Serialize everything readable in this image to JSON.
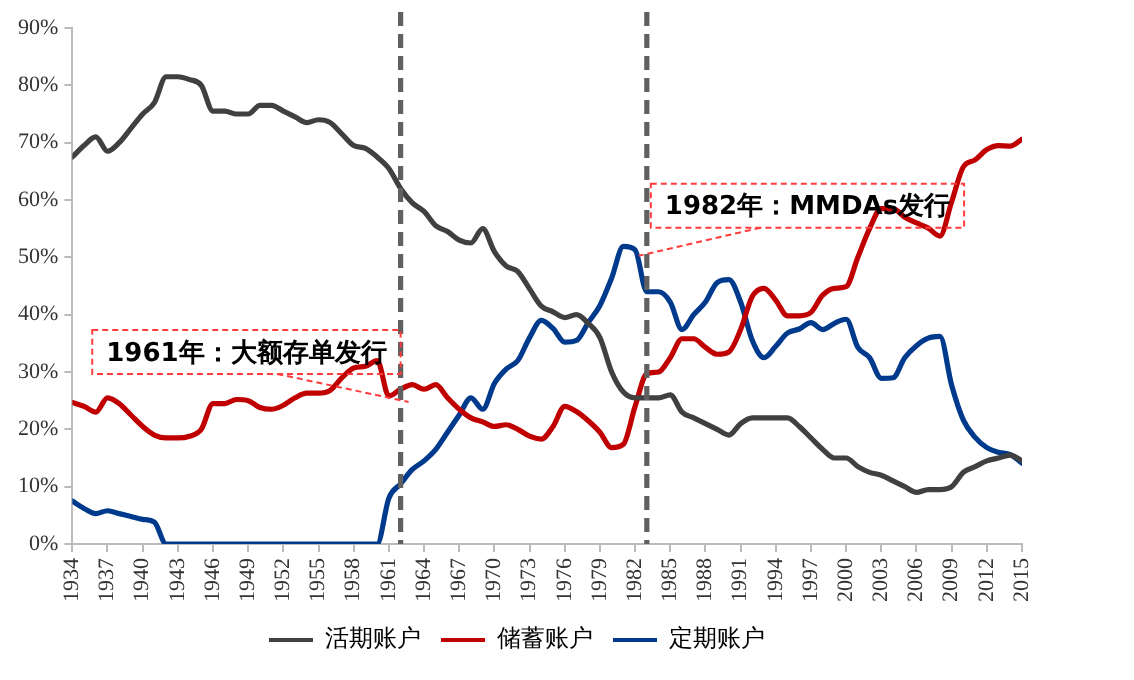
{
  "chart_data": {
    "type": "line",
    "x": [
      1934,
      1935,
      1936,
      1937,
      1938,
      1939,
      1940,
      1941,
      1942,
      1943,
      1944,
      1945,
      1946,
      1947,
      1948,
      1949,
      1950,
      1951,
      1952,
      1953,
      1954,
      1955,
      1956,
      1957,
      1958,
      1959,
      1960,
      1961,
      1962,
      1963,
      1964,
      1965,
      1966,
      1967,
      1968,
      1969,
      1970,
      1971,
      1972,
      1973,
      1974,
      1975,
      1976,
      1977,
      1978,
      1979,
      1980,
      1981,
      1982,
      1983,
      1984,
      1985,
      1986,
      1987,
      1988,
      1989,
      1990,
      1991,
      1992,
      1993,
      1994,
      1995,
      1996,
      1997,
      1998,
      1999,
      2000,
      2001,
      2002,
      2003,
      2004,
      2005,
      2006,
      2007,
      2008,
      2009,
      2010,
      2011,
      2012,
      2013,
      2014,
      2015
    ],
    "series": [
      {
        "name": "活期账户",
        "color": "#404040",
        "values": [
          67.5,
          69.5,
          71,
          68.5,
          70,
          72.5,
          75,
          77,
          81.5,
          81.5,
          81,
          80,
          75.5,
          75.5,
          75,
          75,
          76.5,
          76.5,
          75.5,
          74.5,
          73.5,
          74,
          73.5,
          71.5,
          69.5,
          69,
          67.5,
          65.5,
          62,
          59.5,
          58,
          55.5,
          54.5,
          53,
          52.5,
          55,
          51,
          48.5,
          47.5,
          44.5,
          41.5,
          40.5,
          39.5,
          40,
          38.5,
          36,
          30,
          26.5,
          25.5,
          25.5,
          25.5,
          26,
          23,
          22,
          21,
          20,
          19,
          21,
          22,
          22,
          22,
          22,
          20.5,
          18.5,
          16.5,
          15,
          15,
          13.5,
          12.5,
          12,
          11,
          10,
          9,
          9.5,
          9.5,
          10,
          12.5,
          13.5,
          14.5,
          15,
          15.5,
          14.5
        ]
      },
      {
        "name": "储蓄账户",
        "color": "#c00000",
        "values": [
          24.7,
          24,
          23,
          25.5,
          24.5,
          22.5,
          20.5,
          19,
          18.5,
          18.5,
          18.8,
          20,
          24.5,
          24.5,
          25.2,
          25,
          23.8,
          23.5,
          24.2,
          25.5,
          26.3,
          26.3,
          26.8,
          29,
          30.7,
          31,
          32,
          25.8,
          27,
          27.8,
          27,
          27.8,
          25.5,
          23.5,
          22,
          21.3,
          20.5,
          20.8,
          20,
          18.8,
          18.3,
          20.5,
          24,
          23.1,
          21.5,
          19.5,
          16.8,
          17.4,
          24,
          29.7,
          30,
          32.5,
          35.8,
          35.8,
          34.3,
          33.1,
          33.5,
          37.4,
          43.2,
          44.6,
          42.5,
          39.8,
          39.8,
          40.4,
          43.4,
          44.6,
          44.9,
          50,
          55,
          58.5,
          58.5,
          57,
          56,
          55.1,
          53.7,
          59.7,
          65.8,
          67,
          68.8,
          69.5,
          69.4,
          70.6
        ]
      },
      {
        "name": "定期账户",
        "color": "#003a8c",
        "values": [
          7.5,
          6.2,
          5.3,
          5.8,
          5.3,
          4.8,
          4.3,
          3.8,
          0,
          0,
          0,
          0,
          0,
          0,
          0,
          0,
          0,
          0,
          0,
          0,
          0,
          0,
          0,
          0,
          0,
          0,
          0,
          8,
          10.5,
          13,
          14.5,
          16.5,
          19.5,
          22.5,
          25.5,
          23.5,
          28,
          30.5,
          32,
          36,
          39,
          37.6,
          35.2,
          35.5,
          38.6,
          41.6,
          46.4,
          51.9,
          51.3,
          44,
          44,
          42.2,
          37.4,
          40,
          42.2,
          45.6,
          46.1,
          42.2,
          35.5,
          32.5,
          34.5,
          36.8,
          37.5,
          38.6,
          37.4,
          38.5,
          39.2,
          34.3,
          32.5,
          28.9,
          29,
          32.5,
          34.6,
          35.9,
          36.2,
          27.7,
          21.6,
          18.6,
          16.8,
          16,
          15.6,
          14.1
        ]
      }
    ],
    "xlim": [
      1934,
      2015
    ],
    "xticks": [
      1934,
      1937,
      1940,
      1943,
      1946,
      1949,
      1952,
      1955,
      1958,
      1961,
      1964,
      1967,
      1970,
      1973,
      1976,
      1979,
      1982,
      1985,
      1988,
      1991,
      1994,
      1997,
      2000,
      2003,
      2006,
      2009,
      2012,
      2015
    ],
    "ylim": [
      0,
      90
    ],
    "yticks": [
      {
        "value": 0,
        "label": "0%"
      },
      {
        "value": 10,
        "label": "10%"
      },
      {
        "value": 20,
        "label": "20%"
      },
      {
        "value": 30,
        "label": "30%"
      },
      {
        "value": 40,
        "label": "40%"
      },
      {
        "value": 50,
        "label": "50%"
      },
      {
        "value": 60,
        "label": "60%"
      },
      {
        "value": 70,
        "label": "70%"
      },
      {
        "value": 80,
        "label": "80%"
      },
      {
        "value": 90,
        "label": "90%"
      }
    ],
    "ref_lines": [
      {
        "axis": "x",
        "value": 1962,
        "label": "1961年：大额存单发行",
        "color": "#606060",
        "line_style": "dashed"
      },
      {
        "axis": "x",
        "value": 1983,
        "label": "1982年：MMDAs发行",
        "color": "#606060",
        "line_style": "dashed"
      }
    ],
    "grid": false,
    "legend": "bottom",
    "marker": "none",
    "line_style": "solid"
  }
}
